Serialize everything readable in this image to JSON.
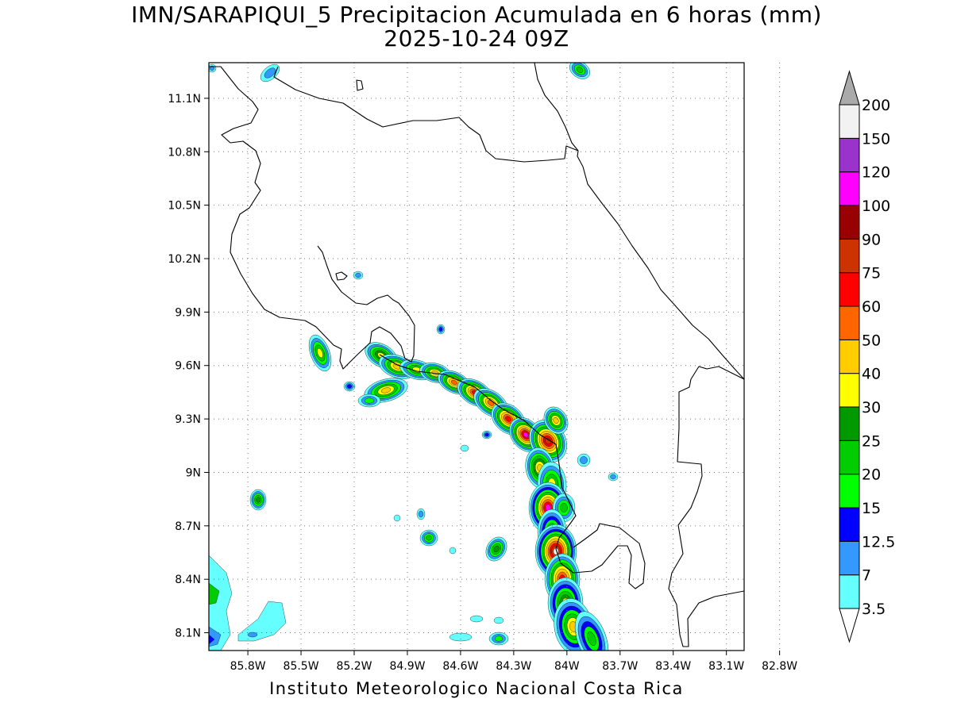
{
  "header": {
    "title_line1": "IMN/SARAPIQUI_5 Precipitacion Acumulada en 6 horas (mm)",
    "title_line2": "2025-10-24 09Z"
  },
  "footer": {
    "credit": "Instituto Meteorologico Nacional Costa Rica"
  },
  "map": {
    "lon_range": [
      -86.02,
      -83.0
    ],
    "lat_range": [
      8.0,
      11.3
    ],
    "lat_ticks": [
      {
        "value": 11.1,
        "label": "11.1N"
      },
      {
        "value": 10.8,
        "label": "10.8N"
      },
      {
        "value": 10.5,
        "label": "10.5N"
      },
      {
        "value": 10.2,
        "label": "10.2N"
      },
      {
        "value": 9.9,
        "label": "9.9N"
      },
      {
        "value": 9.6,
        "label": "9.6N"
      },
      {
        "value": 9.3,
        "label": "9.3N"
      },
      {
        "value": 9.0,
        "label": "9N"
      },
      {
        "value": 8.7,
        "label": "8.7N"
      },
      {
        "value": 8.4,
        "label": "8.4N"
      },
      {
        "value": 8.1,
        "label": "8.1N"
      }
    ],
    "lon_ticks": [
      {
        "value": -85.8,
        "label": "85.8W"
      },
      {
        "value": -85.5,
        "label": "85.5W"
      },
      {
        "value": -85.2,
        "label": "85.2W"
      },
      {
        "value": -84.9,
        "label": "84.9W"
      },
      {
        "value": -84.6,
        "label": "84.6W"
      },
      {
        "value": -84.3,
        "label": "84.3W"
      },
      {
        "value": -84.0,
        "label": "84W"
      },
      {
        "value": -83.7,
        "label": "83.7W"
      },
      {
        "value": -83.4,
        "label": "83.4W"
      },
      {
        "value": -83.1,
        "label": "83.1W"
      },
      {
        "value": -82.8,
        "label": "82.8W"
      }
    ],
    "grid": "dotted"
  },
  "colorbar": {
    "units": "mm",
    "levels": [
      {
        "label": "3.5",
        "color": "#66ffff"
      },
      {
        "label": "7",
        "color": "#3399ff"
      },
      {
        "label": "12.5",
        "color": "#0000ff"
      },
      {
        "label": "15",
        "color": "#00ff00"
      },
      {
        "label": "20",
        "color": "#00cc00"
      },
      {
        "label": "25",
        "color": "#009900"
      },
      {
        "label": "30",
        "color": "#ffff00"
      },
      {
        "label": "40",
        "color": "#ffcc00"
      },
      {
        "label": "50",
        "color": "#ff6600"
      },
      {
        "label": "60",
        "color": "#ff0000"
      },
      {
        "label": "75",
        "color": "#cc3300"
      },
      {
        "label": "90",
        "color": "#990000"
      },
      {
        "label": "100",
        "color": "#ff00ff"
      },
      {
        "label": "120",
        "color": "#9933cc"
      },
      {
        "label": "150",
        "color": "#f2f2f2"
      },
      {
        "label": "200",
        "color": "#aaaaaa"
      }
    ]
  }
}
